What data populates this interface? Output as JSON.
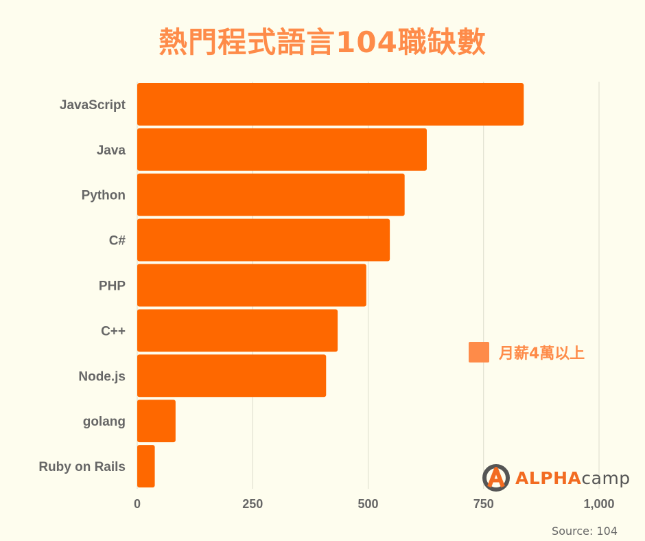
{
  "chart_data": {
    "type": "bar",
    "orientation": "horizontal",
    "title": "熱門程式語言104職缺數",
    "categories": [
      "JavaScript",
      "Java",
      "Python",
      "C#",
      "PHP",
      "C++",
      "Node.js",
      "golang",
      "Ruby on Rails"
    ],
    "series": [
      {
        "name": "月薪4萬以上",
        "values": [
          837,
          627,
          579,
          547,
          496,
          434,
          409,
          83,
          38
        ]
      }
    ],
    "xlim": [
      0,
      1000
    ],
    "xticks": [
      0,
      250,
      500,
      750,
      1000
    ],
    "xtick_labels": [
      "0",
      "250",
      "500",
      "750",
      "1,000"
    ],
    "grid": "vertical",
    "legend_position": "right",
    "colors": {
      "bar": "#fe6800",
      "legend": "#fe8b49",
      "title": "#fe8b49",
      "background": "#fefdee"
    }
  },
  "logo": {
    "alpha": "ALPHA",
    "camp": "camp"
  },
  "source": "Source: 104"
}
